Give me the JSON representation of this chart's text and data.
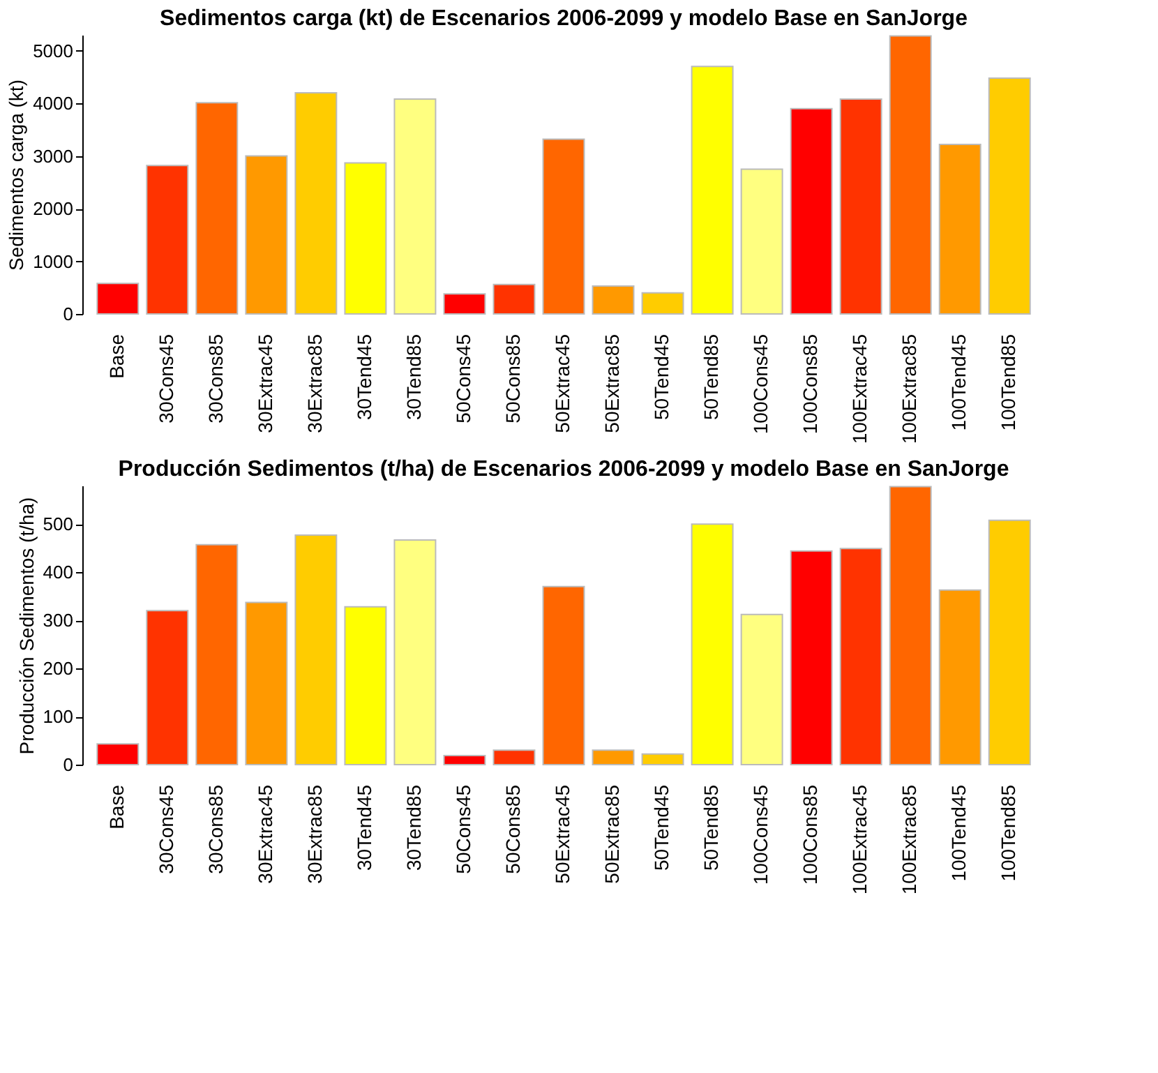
{
  "chart_data": [
    {
      "type": "bar",
      "title": "Sedimentos carga (kt) de Escenarios 2006-2099 y modelo Base en SanJorge",
      "ylabel": "Sedimentos carga (kt)",
      "categories": [
        "Base",
        "30Cons45",
        "30Cons85",
        "30Extrac45",
        "30Extrac85",
        "30Tend45",
        "30Tend85",
        "50Cons45",
        "50Cons85",
        "50Extrac45",
        "50Extrac85",
        "50Tend45",
        "50Tend85",
        "100Cons45",
        "100Cons85",
        "100Extrac45",
        "100Extrac85",
        "100Tend45",
        "100Tend85"
      ],
      "values": [
        580,
        2820,
        4010,
        3000,
        4200,
        2870,
        4080,
        380,
        560,
        3320,
        530,
        400,
        4700,
        2750,
        3900,
        4080,
        5280,
        3220,
        4480
      ],
      "colors": [
        "#ff0000",
        "#ff3300",
        "#ff6600",
        "#ff9900",
        "#ffcc00",
        "#ffff00",
        "#ffff80",
        "#ff0000",
        "#ff3300",
        "#ff6600",
        "#ff9900",
        "#ffcc00",
        "#ffff00",
        "#ffff80",
        "#ff0000",
        "#ff3300",
        "#ff6600",
        "#ff9900",
        "#ffcc00"
      ],
      "ylim": [
        0,
        5300
      ],
      "yticks": [
        0,
        1000,
        2000,
        3000,
        4000,
        5000
      ]
    },
    {
      "type": "bar",
      "title": "Producción Sedimentos (t/ha) de Escenarios 2006-2099 y modelo Base en SanJorge",
      "ylabel": "Producción Sedimentos (t/ha)",
      "categories": [
        "Base",
        "30Cons45",
        "30Cons85",
        "30Extrac45",
        "30Extrac85",
        "30Tend45",
        "30Tend85",
        "50Cons45",
        "50Cons85",
        "50Extrac45",
        "50Extrac85",
        "50Tend45",
        "50Tend85",
        "100Cons45",
        "100Cons85",
        "100Extrac45",
        "100Extrac85",
        "100Tend45",
        "100Tend85"
      ],
      "values": [
        43,
        320,
        457,
        337,
        477,
        328,
        467,
        19,
        30,
        370,
        30,
        22,
        500,
        312,
        444,
        449,
        578,
        363,
        508
      ],
      "colors": [
        "#ff0000",
        "#ff3300",
        "#ff6600",
        "#ff9900",
        "#ffcc00",
        "#ffff00",
        "#ffff80",
        "#ff0000",
        "#ff3300",
        "#ff6600",
        "#ff9900",
        "#ffcc00",
        "#ffff00",
        "#ffff80",
        "#ff0000",
        "#ff3300",
        "#ff6600",
        "#ff9900",
        "#ffcc00"
      ],
      "ylim": [
        0,
        580
      ],
      "yticks": [
        0,
        100,
        200,
        300,
        400,
        500
      ]
    }
  ]
}
